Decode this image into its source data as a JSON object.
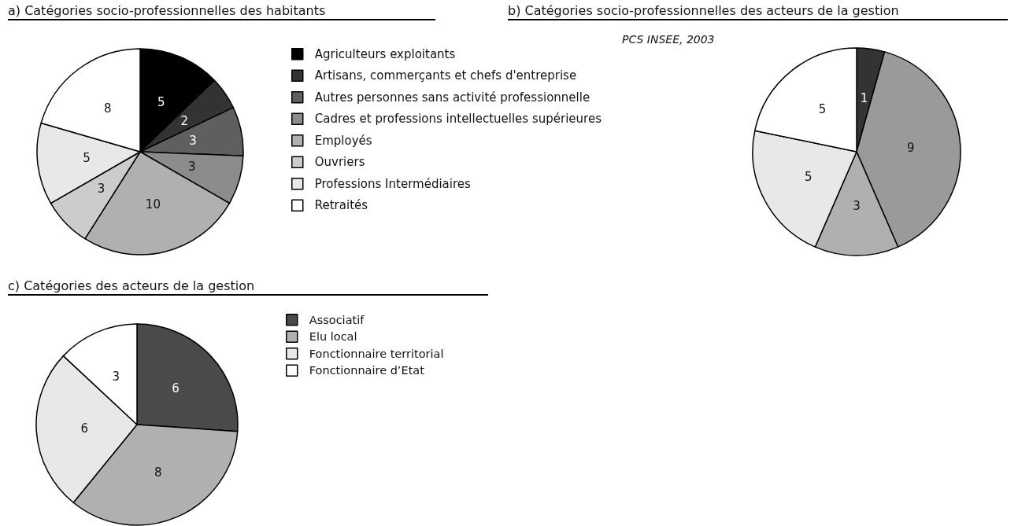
{
  "chart_data": [
    {
      "type": "pie",
      "title": "a) Catégories socio-professionnelles des habitants",
      "categories": [
        "Agriculteurs exploitants",
        "Artisans, commerçants et chefs d'entreprise",
        "Autres personnes sans activité professionnelle",
        "Cadres et professions intellectuelles supérieures",
        "Employés",
        "Ouvriers",
        "Professions Intermédiaires",
        "Retraités"
      ],
      "values": [
        5,
        2,
        3,
        3,
        10,
        3,
        5,
        8
      ],
      "colors": [
        "#000000",
        "#333333",
        "#5f5f5f",
        "#8c8c8c",
        "#b0b0b0",
        "#cccccc",
        "#e8e8e8",
        "#ffffff"
      ],
      "data_labels": true,
      "legend": "right"
    },
    {
      "type": "pie",
      "title": "b) Catégories socio-professionnelles des acteurs de la gestion",
      "annotations": [
        "PCS INSEE, 2003"
      ],
      "categories": [
        null,
        null,
        null,
        null,
        null
      ],
      "values": [
        1,
        9,
        3,
        5,
        5
      ],
      "colors": [
        "#333333",
        "#9a9a9a",
        "#b0b0b0",
        "#e8e8e8",
        "#ffffff"
      ],
      "data_labels": true,
      "legend": false
    },
    {
      "type": "pie",
      "title": "c) Catégories des acteurs de la gestion",
      "categories": [
        "Associatif",
        "Elu local",
        "Fonctionnaire territorial",
        "Fonctionnaire d’Etat"
      ],
      "values": [
        6,
        8,
        6,
        3
      ],
      "colors": [
        "#4a4a4a",
        "#b0b0b0",
        "#e8e8e8",
        "#ffffff"
      ],
      "data_labels": true,
      "legend": "right"
    }
  ]
}
